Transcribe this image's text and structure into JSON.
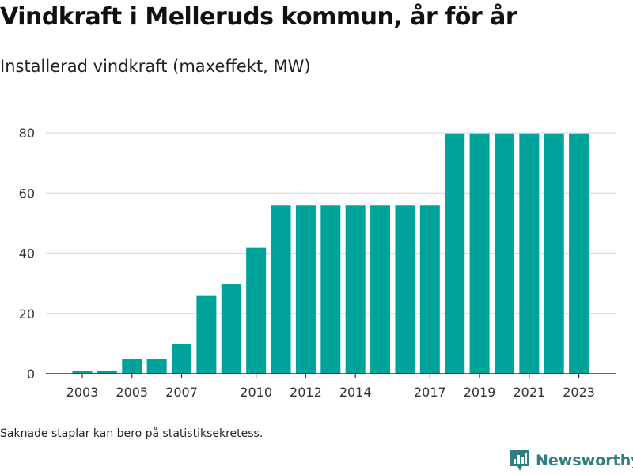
{
  "title": "Vindkraft i Melleruds kommun, år för år",
  "subtitle": "Installerad vindkraft (maxeffekt, MW)",
  "footnote": "Saknade staplar kan bero på statistiksekretess.",
  "brand": {
    "name": "Newsworthy"
  },
  "colors": {
    "bar": "#00a39a",
    "grid": "#dddddd",
    "axis": "#333333",
    "brand": "#2f7f83"
  },
  "chart_data": {
    "type": "bar",
    "categories": [
      2003,
      2004,
      2005,
      2006,
      2007,
      2008,
      2009,
      2010,
      2011,
      2012,
      2013,
      2014,
      2015,
      2016,
      2017,
      2018,
      2019,
      2020,
      2021,
      2022,
      2023
    ],
    "values": [
      0.8,
      0.8,
      4.8,
      4.8,
      9.8,
      25.8,
      29.8,
      41.8,
      55.8,
      55.8,
      55.8,
      55.8,
      55.8,
      55.8,
      55.8,
      79.8,
      79.8,
      79.8,
      79.8,
      79.8,
      79.8
    ],
    "x_tick_labels": [
      "2003",
      "2005",
      "2007",
      "2010",
      "2012",
      "2014",
      "2017",
      "2019",
      "2021",
      "2023"
    ],
    "y_ticks": [
      0,
      20,
      40,
      60,
      80
    ],
    "ylim": [
      0,
      80
    ],
    "xlabel": "",
    "ylabel": "",
    "grid": true,
    "legend": "none"
  }
}
